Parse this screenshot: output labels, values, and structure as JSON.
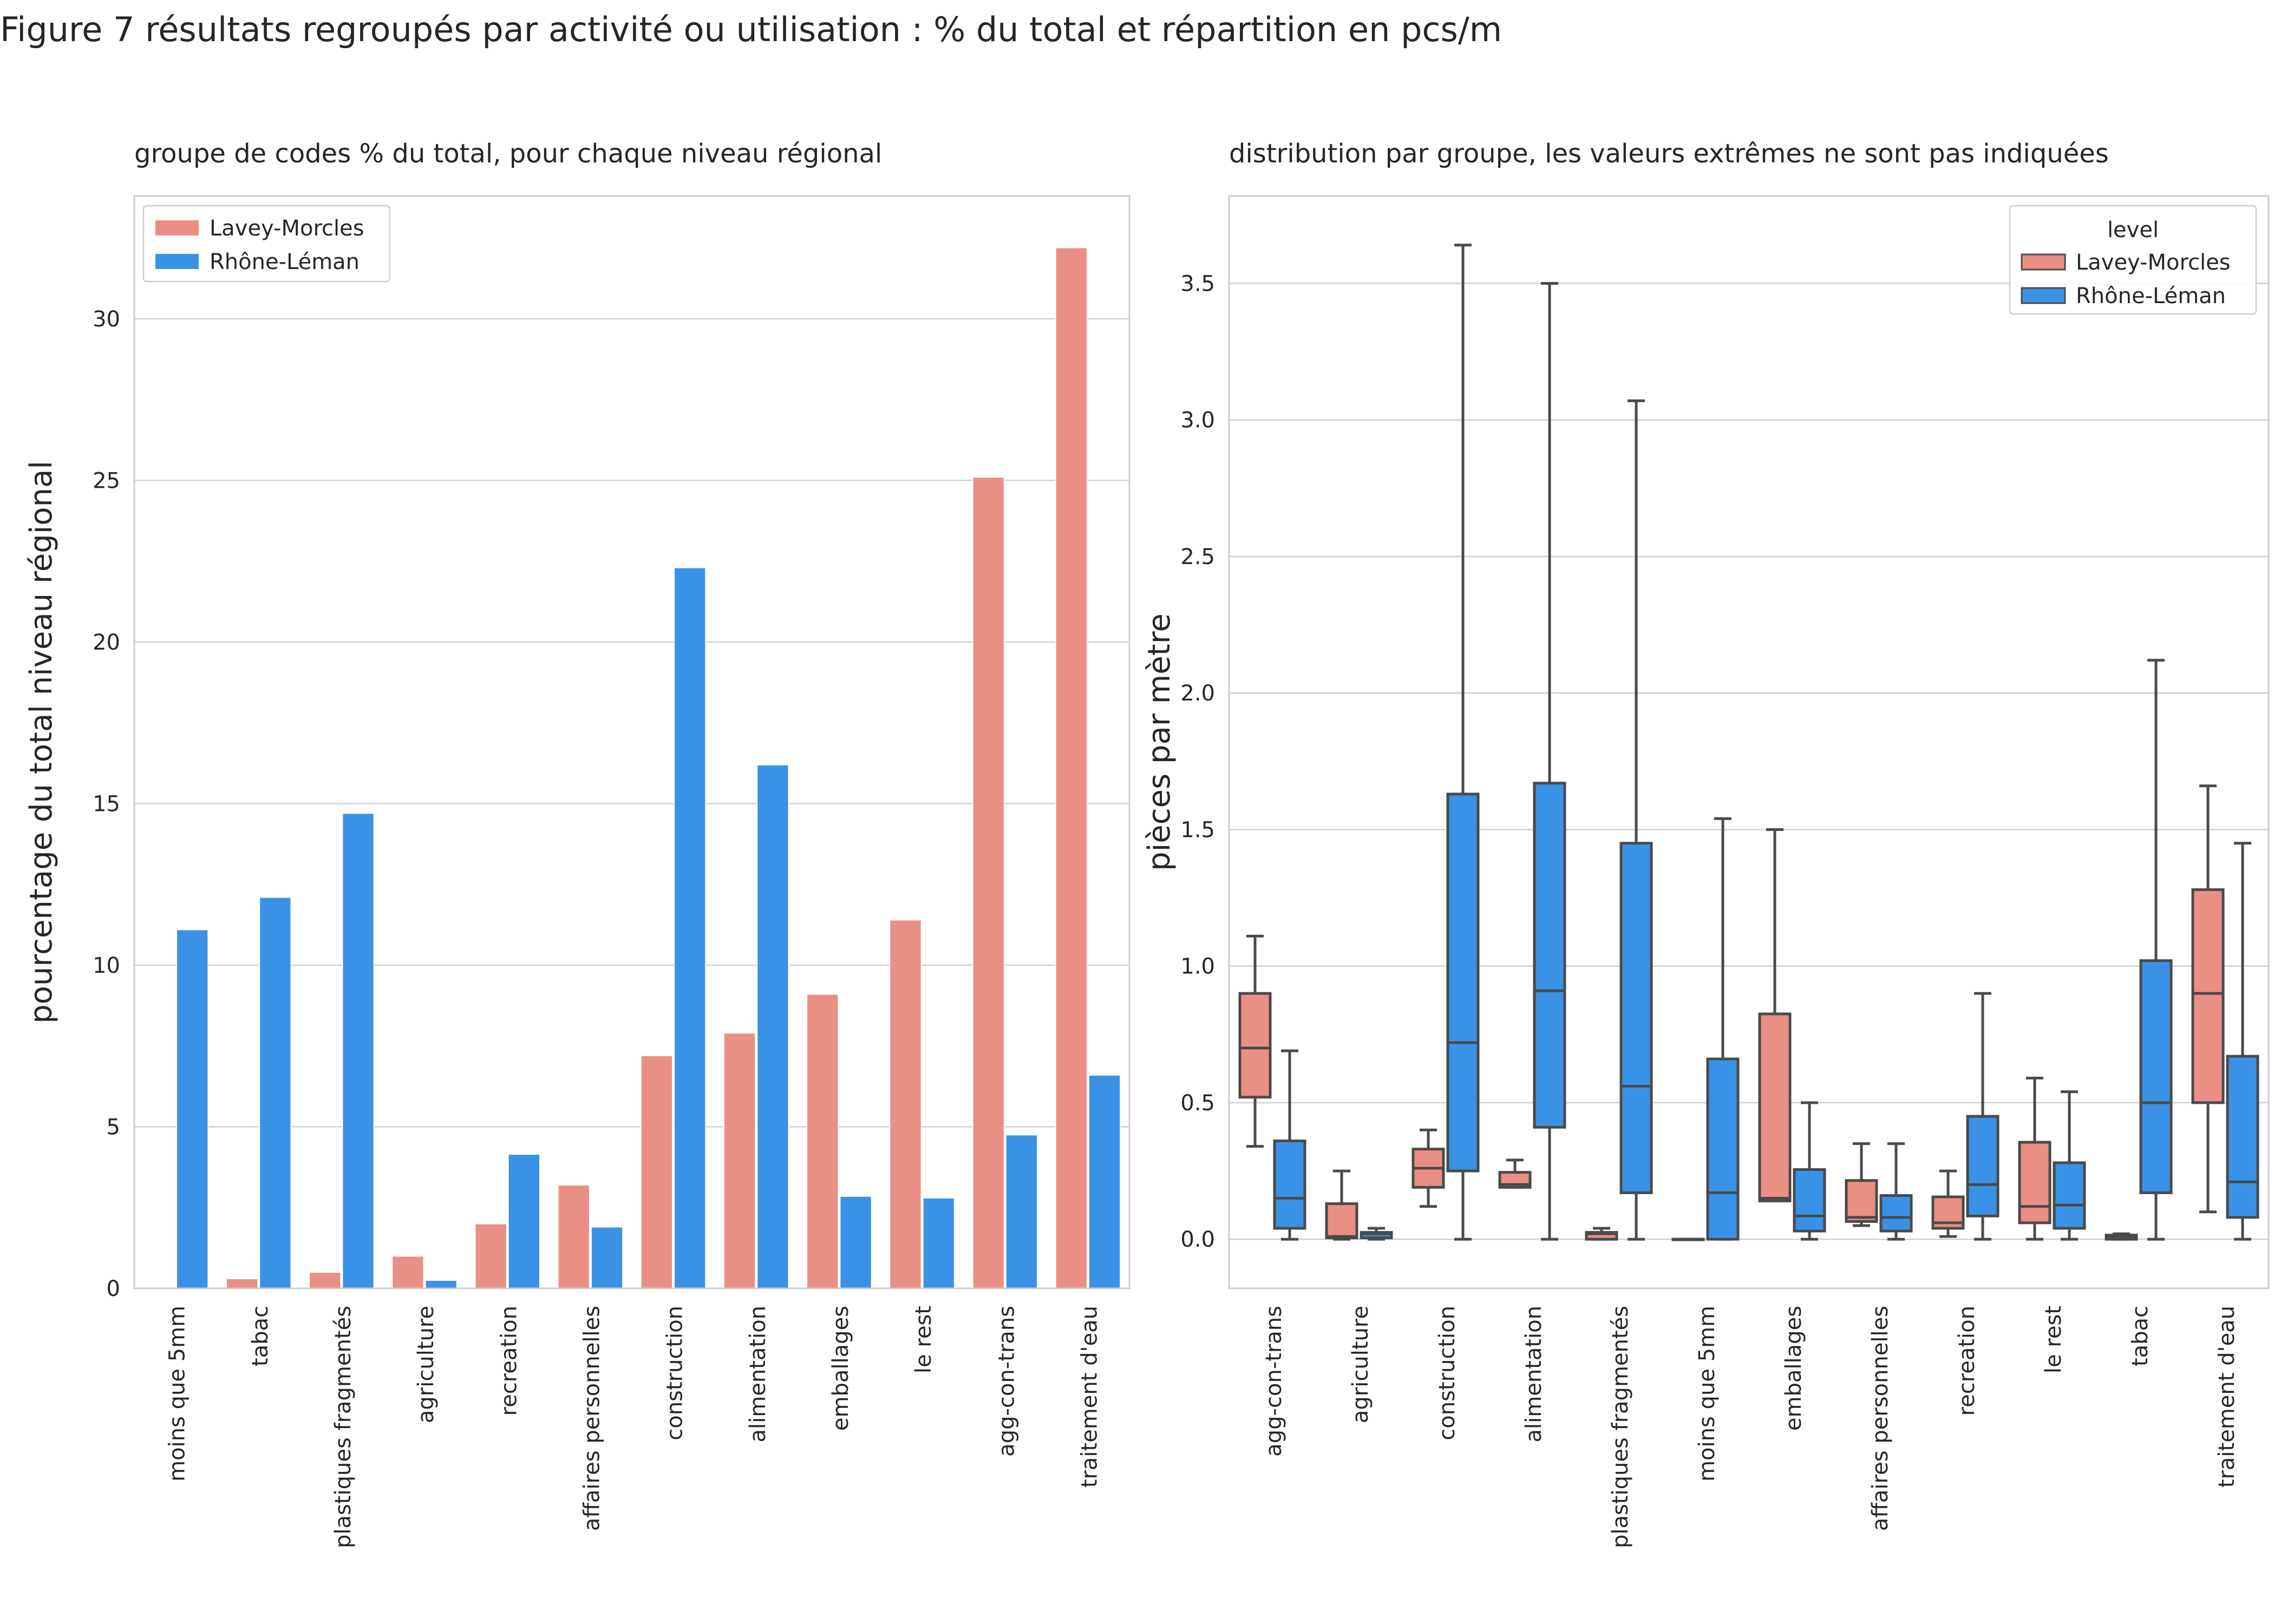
{
  "figure_title": "Figure 7 résultats regroupés par activité ou utilisation : % du total et répartition en pcs/m",
  "colors": {
    "Lavey-Morcles": "#ea8f83",
    "Rhône-Léman": "#3a92e6",
    "grid": "#d0d0d0",
    "frame": "#cccccc",
    "box_line": "#4a4a4a"
  },
  "chart_data": [
    {
      "type": "bar",
      "title": "groupe de codes % du total, pour chaque niveau régional",
      "xlabel": "",
      "ylabel": "pourcentage du total niveau régional",
      "ylim": [
        0,
        33.8
      ],
      "yticks": [
        0,
        5,
        10,
        15,
        20,
        25,
        30
      ],
      "grid": true,
      "legend": {
        "placement": "top-left",
        "title": ""
      },
      "categories": [
        "moins que 5mm",
        "tabac",
        "plastiques fragmentés",
        "agriculture",
        "recreation",
        "affaires personnelles",
        "construction",
        "alimentation",
        "emballages",
        "le rest",
        "agg-con-trans",
        "traitement d'eau"
      ],
      "series": [
        {
          "name": "Lavey-Morcles",
          "values": [
            0,
            0.3,
            0.5,
            1.0,
            2.0,
            3.2,
            7.2,
            7.9,
            9.1,
            11.4,
            25.1,
            32.2
          ]
        },
        {
          "name": "Rhône-Léman",
          "values": [
            11.1,
            12.1,
            14.7,
            0.25,
            4.15,
            1.9,
            22.3,
            16.2,
            2.85,
            2.8,
            4.75,
            6.6
          ]
        }
      ]
    },
    {
      "type": "box",
      "title": "distribution par groupe, les valeurs extrêmes ne sont pas indiquées",
      "xlabel": "",
      "ylabel": "pièces par mètre",
      "ylim": [
        -0.18,
        3.82
      ],
      "yticks": [
        0.0,
        0.5,
        1.0,
        1.5,
        2.0,
        2.5,
        3.0,
        3.5
      ],
      "grid": true,
      "legend": {
        "placement": "top-right",
        "title": "level"
      },
      "categories": [
        "agg-con-trans",
        "agriculture",
        "construction",
        "alimentation",
        "plastiques fragmentés",
        "moins que 5mm",
        "emballages",
        "affaires personnelles",
        "recreation",
        "le rest",
        "tabac",
        "traitement d'eau"
      ],
      "series": [
        {
          "name": "Lavey-Morcles",
          "boxes": [
            [
              0.34,
              0.52,
              0.7,
              0.9,
              1.11
            ],
            [
              0.0,
              0.005,
              0.01,
              0.13,
              0.25
            ],
            [
              0.12,
              0.19,
              0.26,
              0.33,
              0.4
            ],
            [
              0.19,
              0.19,
              0.2,
              0.245,
              0.29
            ],
            [
              0.0,
              0.0,
              0.02,
              0.025,
              0.04
            ],
            [
              0.0,
              0.0,
              0.0,
              0.0,
              0.0
            ],
            [
              0.14,
              0.14,
              0.15,
              0.825,
              1.5
            ],
            [
              0.05,
              0.065,
              0.08,
              0.215,
              0.35
            ],
            [
              0.01,
              0.04,
              0.06,
              0.155,
              0.25
            ],
            [
              0.0,
              0.06,
              0.12,
              0.355,
              0.59
            ],
            [
              0.0,
              0.0,
              0.01,
              0.015,
              0.02
            ],
            [
              0.1,
              0.5,
              0.9,
              1.28,
              1.66
            ]
          ]
        },
        {
          "name": "Rhône-Léman",
          "boxes": [
            [
              0.0,
              0.04,
              0.15,
              0.36,
              0.69
            ],
            [
              0.0,
              0.005,
              0.02,
              0.025,
              0.04
            ],
            [
              0.0,
              0.25,
              0.72,
              1.63,
              3.64
            ],
            [
              0.0,
              0.41,
              0.91,
              1.67,
              3.5
            ],
            [
              0.0,
              0.17,
              0.56,
              1.45,
              3.07
            ],
            [
              0.0,
              0.0,
              0.17,
              0.66,
              1.54
            ],
            [
              0.0,
              0.03,
              0.085,
              0.255,
              0.5
            ],
            [
              0.0,
              0.03,
              0.08,
              0.16,
              0.35
            ],
            [
              0.0,
              0.085,
              0.2,
              0.45,
              0.9
            ],
            [
              0.0,
              0.04,
              0.125,
              0.28,
              0.54
            ],
            [
              0.0,
              0.17,
              0.5,
              1.02,
              2.12
            ],
            [
              0.0,
              0.08,
              0.21,
              0.67,
              1.45
            ]
          ]
        }
      ]
    }
  ]
}
